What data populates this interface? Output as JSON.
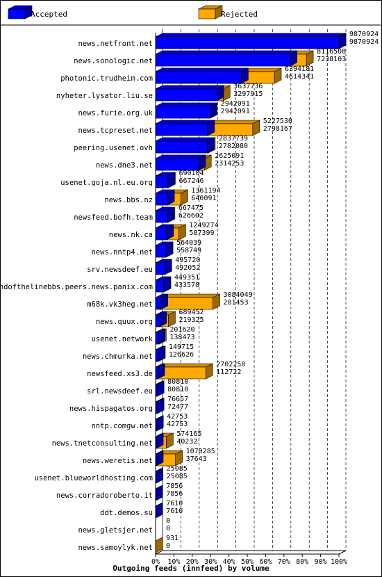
{
  "chart_data": {
    "type": "bar",
    "orientation": "horizontal",
    "stacking": "overlay",
    "title": "Outgoing feeds (innfeed) by volume",
    "grid": true,
    "xlim": [
      0,
      100
    ],
    "x_unit": "%",
    "ticks": [
      "0%",
      "10%",
      "20%",
      "30%",
      "40%",
      "50%",
      "60%",
      "70%",
      "80%",
      "90%",
      "100%"
    ],
    "legend_position": "top",
    "categories": [
      "news.netfront.net",
      "news.sonologic.net",
      "photonic.trudheim.com",
      "nyheter.lysator.liu.se",
      "news.furie.org.uk",
      "news.tcpreset.net",
      "peering.usenet.ovh",
      "news.dne3.net",
      "usenet.goja.nl.eu.org",
      "news.bbs.nz",
      "newsfeed.bofh.team",
      "news.nk.ca",
      "news.nntp4.net",
      "srv.newsdeef.eu",
      "endofthelinebbs.peers.news.panix.com",
      "m68k.vk3heg.net",
      "news.quux.org",
      "usenet.network",
      "news.chmurka.net",
      "newsfeed.xs3.de",
      "srl.newsdeef.eu",
      "news.hispagatos.org",
      "nntp.comgw.net",
      "news.tnetconsulting.net",
      "news.weretis.net",
      "usenet.blueworldhosting.com",
      "news.corradoroberto.it",
      "ddt.demos.su",
      "news.gletsjer.net",
      "news.samoylyk.net"
    ],
    "series": [
      {
        "name": "Accepted",
        "color": "#0000ff",
        "values": [
          9870924,
          7238103,
          4614341,
          3297915,
          2942091,
          2798167,
          2782080,
          2314253,
          667246,
          640091,
          626602,
          587399,
          558749,
          492052,
          433578,
          281453,
          219325,
          138473,
          126626,
          112722,
          80810,
          72477,
          42753,
          40232,
          37643,
          25085,
          7856,
          7610,
          0,
          0
        ]
      },
      {
        "name": "Rejected",
        "color": "#ffaa00",
        "values": [
          9870924,
          8116508,
          6394181,
          3637736,
          2942091,
          5227530,
          2837739,
          2625091,
          690104,
          1361194,
          667475,
          1249274,
          564039,
          495720,
          449351,
          3084049,
          689452,
          201620,
          149715,
          2702258,
          80810,
          76657,
          42753,
          574165,
          1070285,
          25085,
          7856,
          7610,
          0,
          931
        ]
      }
    ],
    "value_labels": [
      [
        "9870924",
        "9870924"
      ],
      [
        "8116508",
        "7238103"
      ],
      [
        "6394181",
        "4614341"
      ],
      [
        "3637736",
        "3297915"
      ],
      [
        "2942091",
        "2942091"
      ],
      [
        "5227530",
        "2798167"
      ],
      [
        "2837739",
        "2782080"
      ],
      [
        "2625091",
        "2314253"
      ],
      [
        "690104",
        "667246"
      ],
      [
        "1361194",
        "640091"
      ],
      [
        "667475",
        "626602"
      ],
      [
        "1249274",
        "587399"
      ],
      [
        "564039",
        "558749"
      ],
      [
        "495720",
        "492052"
      ],
      [
        "449351",
        "433578"
      ],
      [
        "3084049",
        "281453"
      ],
      [
        "689452",
        "219325"
      ],
      [
        "201620",
        "138473"
      ],
      [
        "149715",
        "126626"
      ],
      [
        "2702258",
        "112722"
      ],
      [
        "80810",
        "80810"
      ],
      [
        "76657",
        "72477"
      ],
      [
        "42753",
        "42753"
      ],
      [
        "574165",
        "40232"
      ],
      [
        "1070285",
        "37643"
      ],
      [
        "25085",
        "25085"
      ],
      [
        "7856",
        "7856"
      ],
      [
        "7610",
        "7610"
      ],
      [
        "0",
        "0"
      ],
      [
        "931",
        "0"
      ]
    ]
  }
}
